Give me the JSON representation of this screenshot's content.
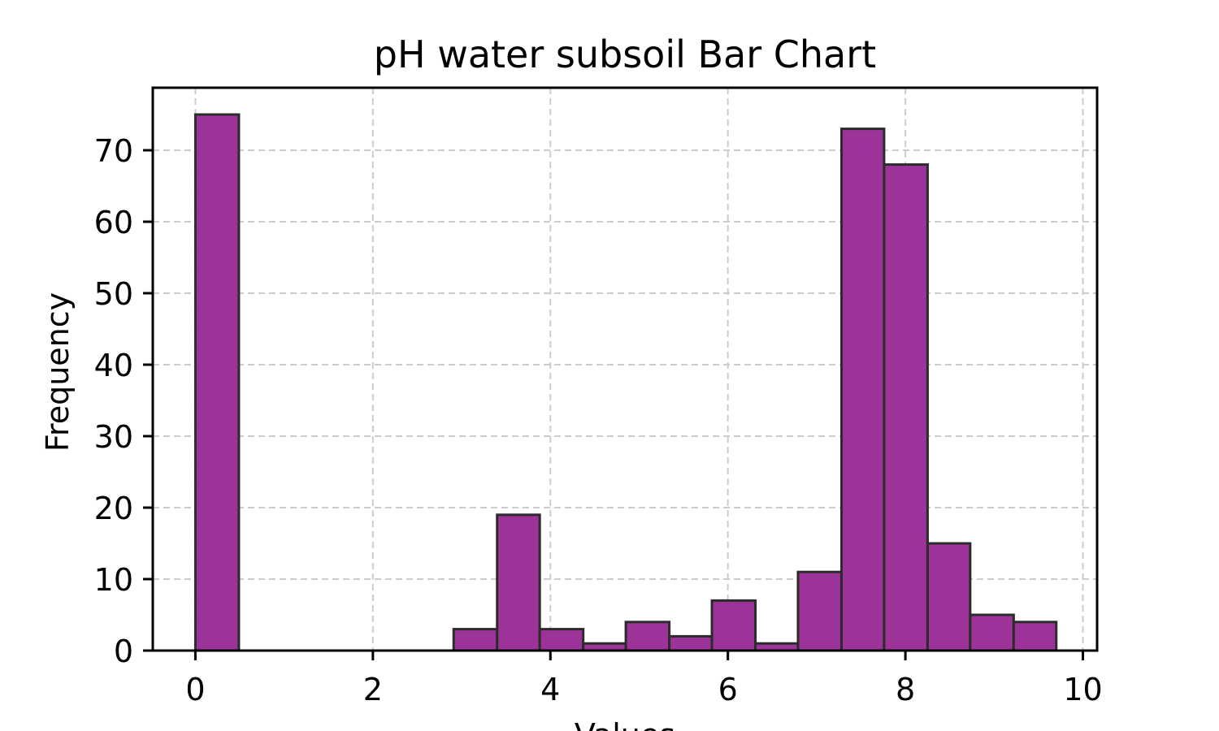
{
  "chart_data": {
    "type": "bar",
    "title": "pH water subsoil Bar Chart",
    "xlabel": "Values",
    "ylabel": "Frequency",
    "xlim": [
      -0.48,
      10.16
    ],
    "ylim": [
      0,
      78.75
    ],
    "xticks": [
      0,
      2,
      4,
      6,
      8,
      10
    ],
    "yticks": [
      0,
      10,
      20,
      30,
      40,
      50,
      60,
      70
    ],
    "grid": true,
    "bar_color": "#9b3399",
    "edge_color": "#2b2b2b",
    "bins": [
      {
        "x0": 0.0,
        "x1": 0.49,
        "count": 75
      },
      {
        "x0": 0.49,
        "x1": 0.97,
        "count": 0
      },
      {
        "x0": 0.97,
        "x1": 1.46,
        "count": 0
      },
      {
        "x0": 1.46,
        "x1": 1.94,
        "count": 0
      },
      {
        "x0": 1.94,
        "x1": 2.43,
        "count": 0
      },
      {
        "x0": 2.43,
        "x1": 2.91,
        "count": 0
      },
      {
        "x0": 2.91,
        "x1": 3.4,
        "count": 3
      },
      {
        "x0": 3.4,
        "x1": 3.88,
        "count": 19
      },
      {
        "x0": 3.88,
        "x1": 4.37,
        "count": 3
      },
      {
        "x0": 4.37,
        "x1": 4.85,
        "count": 1
      },
      {
        "x0": 4.85,
        "x1": 5.34,
        "count": 4
      },
      {
        "x0": 5.34,
        "x1": 5.82,
        "count": 2
      },
      {
        "x0": 5.82,
        "x1": 6.31,
        "count": 7
      },
      {
        "x0": 6.31,
        "x1": 6.79,
        "count": 1
      },
      {
        "x0": 6.79,
        "x1": 7.28,
        "count": 11
      },
      {
        "x0": 7.28,
        "x1": 7.76,
        "count": 73
      },
      {
        "x0": 7.76,
        "x1": 8.25,
        "count": 68
      },
      {
        "x0": 8.25,
        "x1": 8.73,
        "count": 15
      },
      {
        "x0": 8.73,
        "x1": 9.22,
        "count": 5
      },
      {
        "x0": 9.22,
        "x1": 9.7,
        "count": 4
      }
    ]
  }
}
